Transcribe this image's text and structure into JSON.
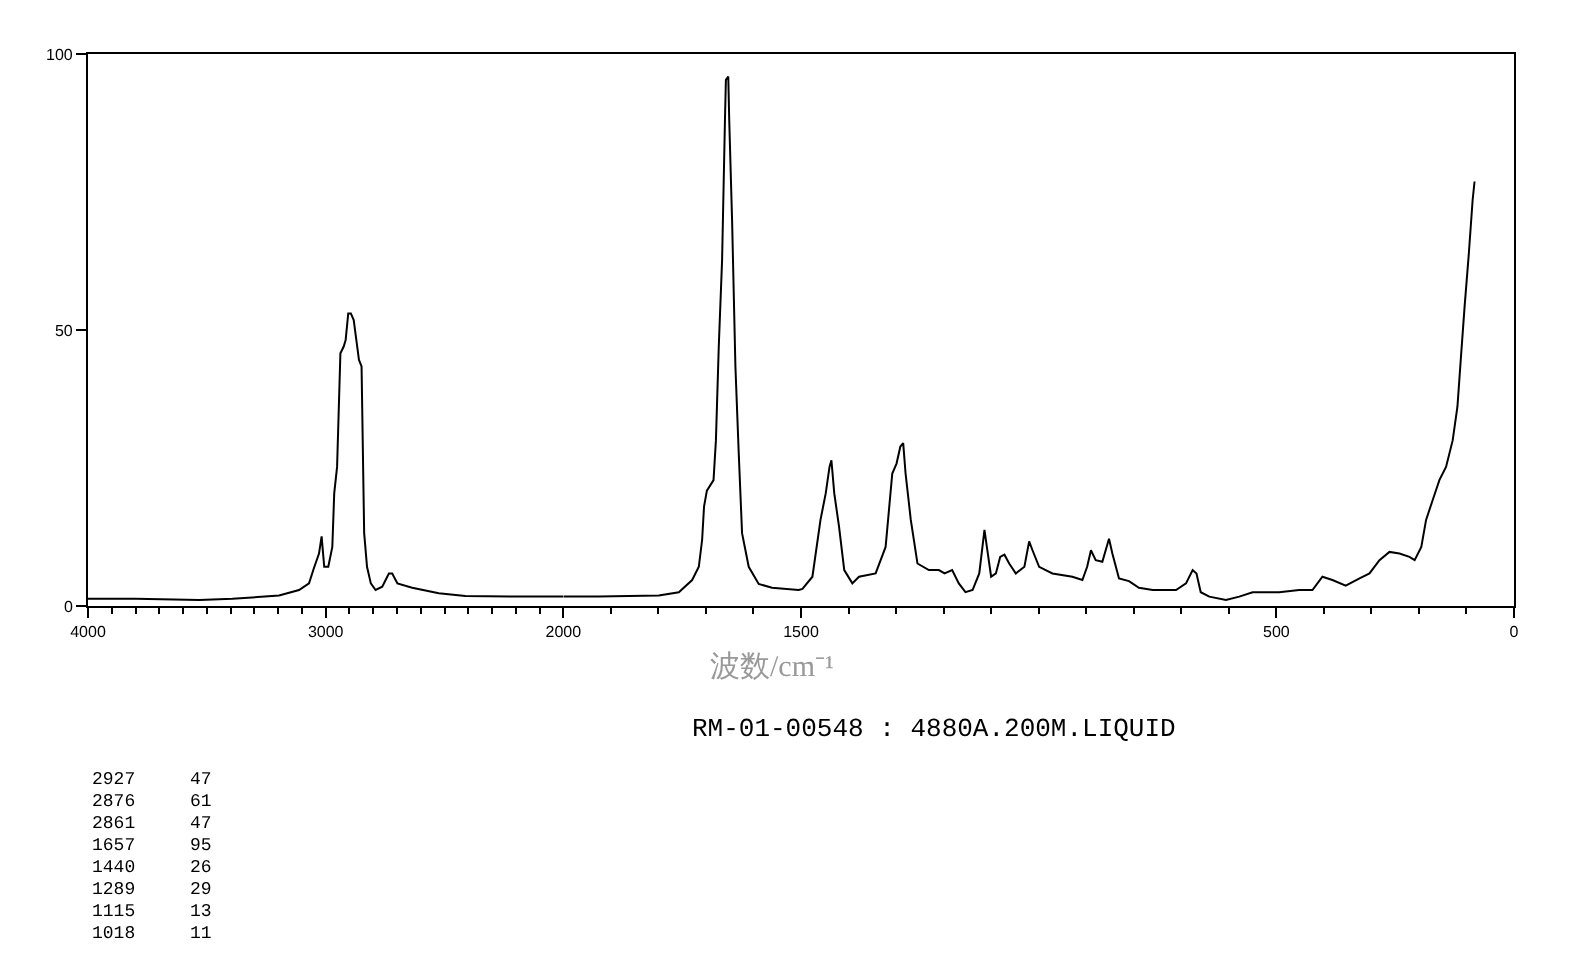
{
  "chart_data": [
    {
      "type": "line",
      "color": "#000000",
      "x": [
        4000,
        3800,
        3532,
        3392,
        3196,
        3112,
        3070,
        3050,
        3028,
        3017,
        3006,
        2989,
        2972,
        2964,
        2952,
        2938,
        2924,
        2916,
        2905,
        2894,
        2882,
        2871,
        2860,
        2849,
        2838,
        2826,
        2810,
        2790,
        2762,
        2734,
        2720,
        2698,
        2636,
        2524,
        2412,
        2188,
        2000
      ],
      "values": [
        1.3,
        1.3,
        1.1,
        1.3,
        1.9,
        2.9,
        4.1,
        6.8,
        9.5,
        12.6,
        7.1,
        7.1,
        10.7,
        20.4,
        25.2,
        45.8,
        47,
        48.2,
        53,
        53,
        51.8,
        48.2,
        44.6,
        43.4,
        13.2,
        7.1,
        4.1,
        2.9,
        3.5,
        5.9,
        5.9,
        4.1,
        3.3,
        2.3,
        1.8,
        1.7,
        1.7
      ],
      "xlim": [
        4000,
        2000
      ],
      "xticks": [
        4000,
        {
          "value": 3900,
          "label": null
        },
        {
          "value": 3800,
          "label": null
        },
        {
          "value": 3700,
          "label": null
        },
        {
          "value": 3600,
          "label": null
        },
        {
          "value": 3500,
          "label": null
        },
        {
          "value": 3400,
          "label": null
        },
        {
          "value": 3300,
          "label": null
        },
        {
          "value": 3200,
          "label": null
        },
        {
          "value": 3100,
          "label": null
        },
        3000,
        {
          "value": 2900,
          "label": null
        },
        {
          "value": 2800,
          "label": null
        },
        {
          "value": 2700,
          "label": null
        },
        {
          "value": 2600,
          "label": null
        },
        {
          "value": 2500,
          "label": null
        },
        {
          "value": 2400,
          "label": null
        },
        {
          "value": 2300,
          "label": null
        },
        {
          "value": 2200,
          "label": null
        },
        {
          "value": 2100,
          "label": null
        },
        2000
      ],
      "ylim": [
        0,
        100
      ],
      "yticks": [
        0,
        50,
        100
      ],
      "annotations": [
        "2927",
        "47",
        "2876",
        "61",
        "2861",
        "47",
        "1657",
        "95",
        "1440",
        "26",
        "1289",
        "29",
        "1115",
        "13",
        "1018",
        "11"
      ]
    },
    {
      "type": "line",
      "color": "#000000",
      "x": [
        2000,
        1926,
        1799,
        1757,
        1729,
        1715,
        1708,
        1704,
        1698,
        1684,
        1679,
        1673,
        1666,
        1660,
        1658,
        1653,
        1651,
        1645,
        1638,
        1631,
        1624,
        1610,
        1589,
        1561,
        1505,
        1497,
        1476,
        1459,
        1448,
        1440,
        1436,
        1430,
        1420,
        1409,
        1392,
        1378,
        1343,
        1322,
        1308,
        1299,
        1291,
        1285,
        1280,
        1269,
        1255,
        1231,
        1210,
        1198,
        1182,
        1168,
        1154,
        1139,
        1125,
        1114,
        1109,
        1100,
        1090,
        1081,
        1072,
        1062,
        1048,
        1030,
        1020,
        1013,
        999,
        971,
        929,
        908,
        898,
        890,
        880,
        866,
        852,
        845,
        831,
        810,
        789,
        760,
        732,
        711,
        690,
        676,
        668,
        659,
        641,
        606,
        578,
        550,
        494,
        452,
        424,
        403,
        382,
        354,
        325,
        304,
        283,
        262,
        241,
        220,
        209,
        195,
        185,
        171,
        157,
        143,
        129,
        119,
        112,
        104,
        95,
        87,
        83
      ],
      "values": [
        1.7,
        1.7,
        1.9,
        2.5,
        4.7,
        7.1,
        12,
        18,
        20.9,
        22.8,
        30,
        47,
        62.7,
        88,
        95.3,
        95.9,
        88,
        70,
        43.4,
        27.7,
        13.2,
        7.1,
        4,
        3.3,
        2.9,
        3.1,
        5.3,
        15.6,
        20.4,
        25.2,
        26.4,
        20.4,
        14.4,
        6.5,
        4.1,
        5.3,
        5.9,
        10.7,
        24,
        25.8,
        28.9,
        29.5,
        24,
        15.6,
        7.7,
        6.5,
        6.5,
        5.9,
        6.5,
        4.1,
        2.5,
        2.9,
        5.9,
        13.8,
        10.7,
        5.3,
        5.9,
        8.9,
        9.3,
        7.7,
        5.9,
        7.1,
        11.7,
        10.1,
        7.1,
        5.9,
        5.3,
        4.7,
        7.1,
        10.1,
        8.3,
        8,
        12.2,
        9.5,
        5,
        4.5,
        3.3,
        2.9,
        2.9,
        2.9,
        4.1,
        6.5,
        5.9,
        2.5,
        1.7,
        1.1,
        1.7,
        2.5,
        2.5,
        2.9,
        2.9,
        5.3,
        4.7,
        3.7,
        5,
        5.9,
        8.3,
        9.8,
        9.5,
        8.9,
        8.3,
        10.7,
        15.6,
        19.2,
        22.8,
        25.2,
        30,
        36.1,
        44.6,
        54.2,
        63.9,
        73.6,
        76.9
      ],
      "xlim": [
        2000,
        0
      ],
      "xticks": [
        {
          "value": 1900,
          "label": null
        },
        {
          "value": 1800,
          "label": null
        },
        {
          "value": 1700,
          "label": null
        },
        {
          "value": 1600,
          "label": null
        },
        1500,
        {
          "value": 1400,
          "label": null
        },
        {
          "value": 1300,
          "label": null
        },
        {
          "value": 1200,
          "label": null
        },
        {
          "value": 1100,
          "label": null
        },
        {
          "value": 1000,
          "label": null
        },
        {
          "value": 900,
          "label": null
        },
        {
          "value": 800,
          "label": null
        },
        {
          "value": 700,
          "label": null
        },
        {
          "value": 600,
          "label": null
        },
        500,
        {
          "value": 400,
          "label": null
        },
        {
          "value": 300,
          "label": null
        },
        {
          "value": 200,
          "label": null
        },
        {
          "value": 100,
          "label": null
        },
        0
      ],
      "ylim": [
        0,
        100
      ],
      "tick_labels": "x",
      "xlabel": "波数/cm⁻¹",
      "annotations": [
        "RM-01-00548 : 4880A.200M.LIQUID"
      ]
    }
  ]
}
